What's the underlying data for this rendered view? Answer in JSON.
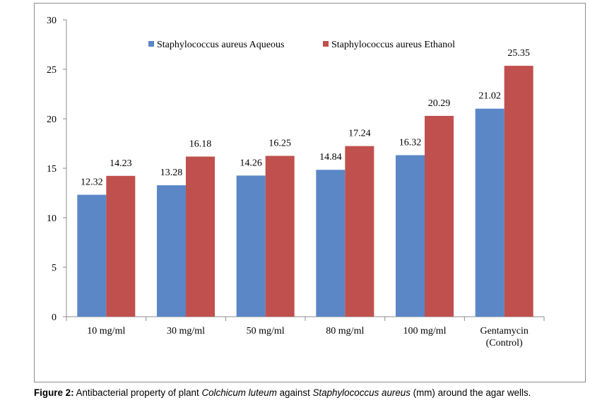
{
  "chart_data": {
    "type": "bar",
    "categories": [
      [
        "10 mg/ml"
      ],
      [
        "30 mg/ml"
      ],
      [
        "50 mg/ml"
      ],
      [
        "80 mg/ml"
      ],
      [
        "100 mg/ml"
      ],
      [
        "Gentamycin",
        "(Control)"
      ]
    ],
    "series": [
      {
        "name": "Staphylococcus aureus Aqueous",
        "color": "#5b87c7",
        "values": [
          12.32,
          13.28,
          14.26,
          14.84,
          16.32,
          21.02
        ],
        "labels": [
          "12.32",
          "13.28",
          "14.26",
          "14.84",
          "16.32",
          "21.02"
        ]
      },
      {
        "name": "Staphylococcus aureus Ethanol",
        "color": "#c0504d",
        "values": [
          14.23,
          16.18,
          16.25,
          17.24,
          20.29,
          25.35
        ],
        "labels": [
          "14.23",
          "16.18",
          "16.25",
          "17.24",
          "20.29",
          "25.35"
        ]
      }
    ],
    "yticks": [
      "0",
      "5",
      "10",
      "15",
      "20",
      "25",
      "30"
    ],
    "ylim": [
      0,
      30
    ],
    "grid": false,
    "legend_position": "top",
    "title": "",
    "xlabel": "",
    "ylabel": ""
  },
  "caption": {
    "label": "Figure 2:",
    "part1": " Antibacterial property of plant ",
    "species_plant": "Colchicum luteum",
    "part2": " against ",
    "species_bacteria": "Staphylococcus aureus",
    "part3": " (mm) around the agar wells."
  }
}
